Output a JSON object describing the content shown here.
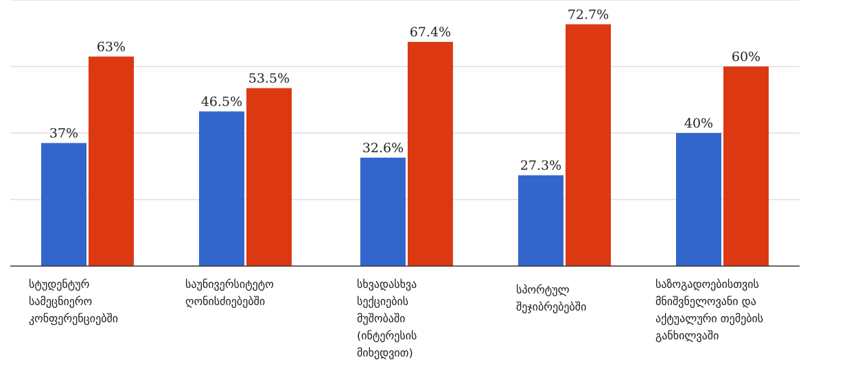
{
  "chart_data": {
    "type": "bar",
    "categories": [
      "სტუდენტურ\nსამეცნიერო\nკონფერენციებში",
      "საუნივერსიტეტო\nღონისძიებებში",
      "სხვადასხვა\nსექციების\nმუშობაში\n(ინტერესის\nმიხედვით)",
      "სპორტულ\nშეჯიბრებებში",
      "საზოგადოებისთვის\nმნიშვნელოვანი და\nაქტუალური თემების\nგანხილვაში"
    ],
    "series": [
      {
        "values": [
          37,
          46.5,
          32.6,
          27.3,
          40
        ],
        "labels": [
          "37%",
          "46.5%",
          "32.6%",
          "27.3%",
          "40%"
        ],
        "color": "#3366cc"
      },
      {
        "values": [
          63,
          53.5,
          67.4,
          72.7,
          60
        ],
        "labels": [
          "63%",
          "53.5%",
          "67.4%",
          "72.7%",
          "60%"
        ],
        "color": "#dc3912"
      }
    ],
    "ylim": [
      0,
      80
    ],
    "grid": true,
    "legend": "none"
  }
}
